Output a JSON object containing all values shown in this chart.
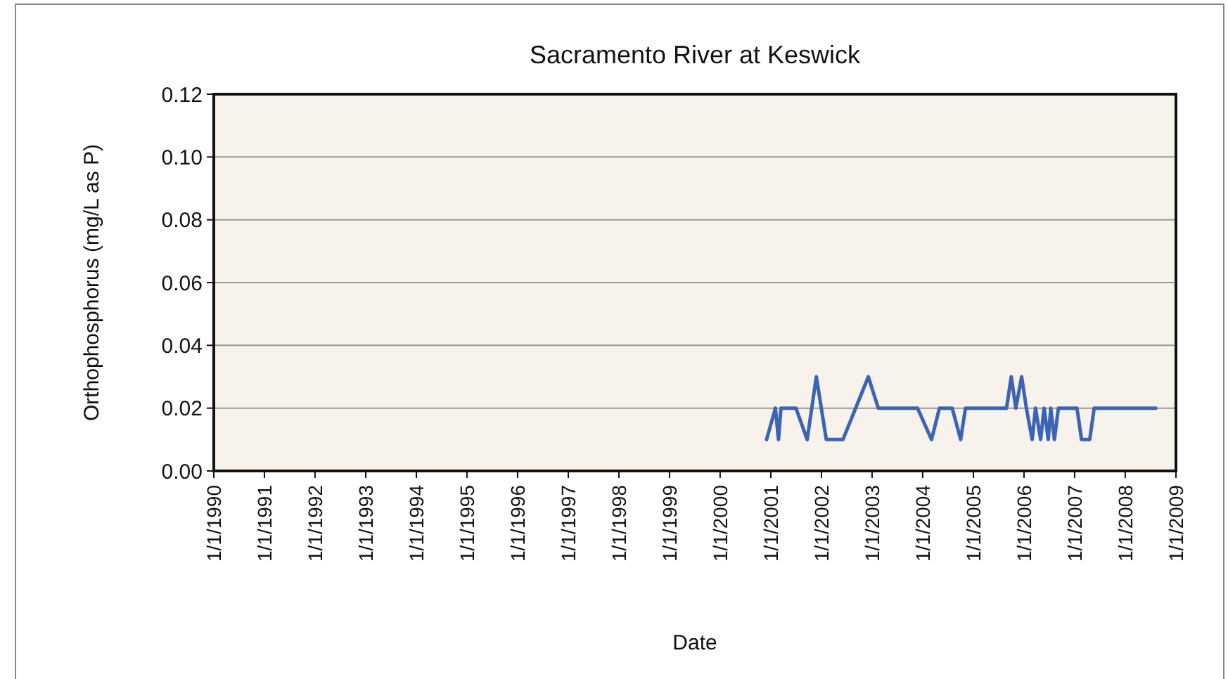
{
  "chart_data": {
    "type": "line",
    "title": "Sacramento River at Keswick",
    "xlabel": "Date",
    "ylabel": "Orthophosphorus (mg/L as P)",
    "x": [
      "2000-12-01",
      "2001-02-03",
      "2001-02-25",
      "2001-03-15",
      "2001-07-01",
      "2001-09-20",
      "2001-11-25",
      "2002-02-05",
      "2002-06-05",
      "2002-12-05",
      "2003-02-15",
      "2003-11-25",
      "2004-03-05",
      "2004-05-01",
      "2004-08-01",
      "2004-10-01",
      "2004-11-05",
      "2005-08-28",
      "2005-10-01",
      "2005-11-03",
      "2005-12-15",
      "2006-01-18",
      "2006-03-01",
      "2006-03-25",
      "2006-05-01",
      "2006-05-26",
      "2006-06-25",
      "2006-07-13",
      "2006-08-08",
      "2006-09-06",
      "2007-01-18",
      "2007-02-20",
      "2007-04-20",
      "2007-05-22",
      "2008-08-08"
    ],
    "series": [
      {
        "color": "#3b64b4",
        "values": [
          0.01,
          0.02,
          0.01,
          0.02,
          0.02,
          0.01,
          0.03,
          0.01,
          0.01,
          0.03,
          0.02,
          0.02,
          0.01,
          0.02,
          0.02,
          0.01,
          0.02,
          0.02,
          0.03,
          0.02,
          0.03,
          0.02,
          0.01,
          0.02,
          0.01,
          0.02,
          0.01,
          0.02,
          0.01,
          0.02,
          0.02,
          0.01,
          0.01,
          0.02,
          0.02
        ]
      }
    ],
    "xlim": [
      "1990-01-01",
      "2009-01-01"
    ],
    "xticks": [
      {
        "value": "1990-01-01",
        "label": "1/1/1990"
      },
      {
        "value": "1991-01-01",
        "label": "1/1/1991"
      },
      {
        "value": "1992-01-01",
        "label": "1/1/1992"
      },
      {
        "value": "1993-01-01",
        "label": "1/1/1993"
      },
      {
        "value": "1994-01-01",
        "label": "1/1/1994"
      },
      {
        "value": "1995-01-01",
        "label": "1/1/1995"
      },
      {
        "value": "1996-01-01",
        "label": "1/1/1996"
      },
      {
        "value": "1997-01-01",
        "label": "1/1/1997"
      },
      {
        "value": "1998-01-01",
        "label": "1/1/1998"
      },
      {
        "value": "1999-01-01",
        "label": "1/1/1999"
      },
      {
        "value": "2000-01-01",
        "label": "1/1/2000"
      },
      {
        "value": "2001-01-01",
        "label": "1/1/2001"
      },
      {
        "value": "2002-01-01",
        "label": "1/1/2002"
      },
      {
        "value": "2003-01-01",
        "label": "1/1/2003"
      },
      {
        "value": "2004-01-01",
        "label": "1/1/2004"
      },
      {
        "value": "2005-01-01",
        "label": "1/1/2005"
      },
      {
        "value": "2006-01-01",
        "label": "1/1/2006"
      },
      {
        "value": "2007-01-01",
        "label": "1/1/2007"
      },
      {
        "value": "2008-01-01",
        "label": "1/1/2008"
      },
      {
        "value": "2009-01-01",
        "label": "1/1/2009"
      }
    ],
    "ylim": [
      0,
      0.12
    ],
    "yticks": [
      {
        "value": 0,
        "label": "0.00"
      },
      {
        "value": 0.02,
        "label": "0.02"
      },
      {
        "value": 0.04,
        "label": "0.04"
      },
      {
        "value": 0.06,
        "label": "0.06"
      },
      {
        "value": 0.08,
        "label": "0.08"
      },
      {
        "value": 0.1,
        "label": "0.10"
      },
      {
        "value": 0.12,
        "label": "0.12"
      }
    ],
    "grid": "y",
    "marker": "none",
    "line_style": "solid"
  }
}
